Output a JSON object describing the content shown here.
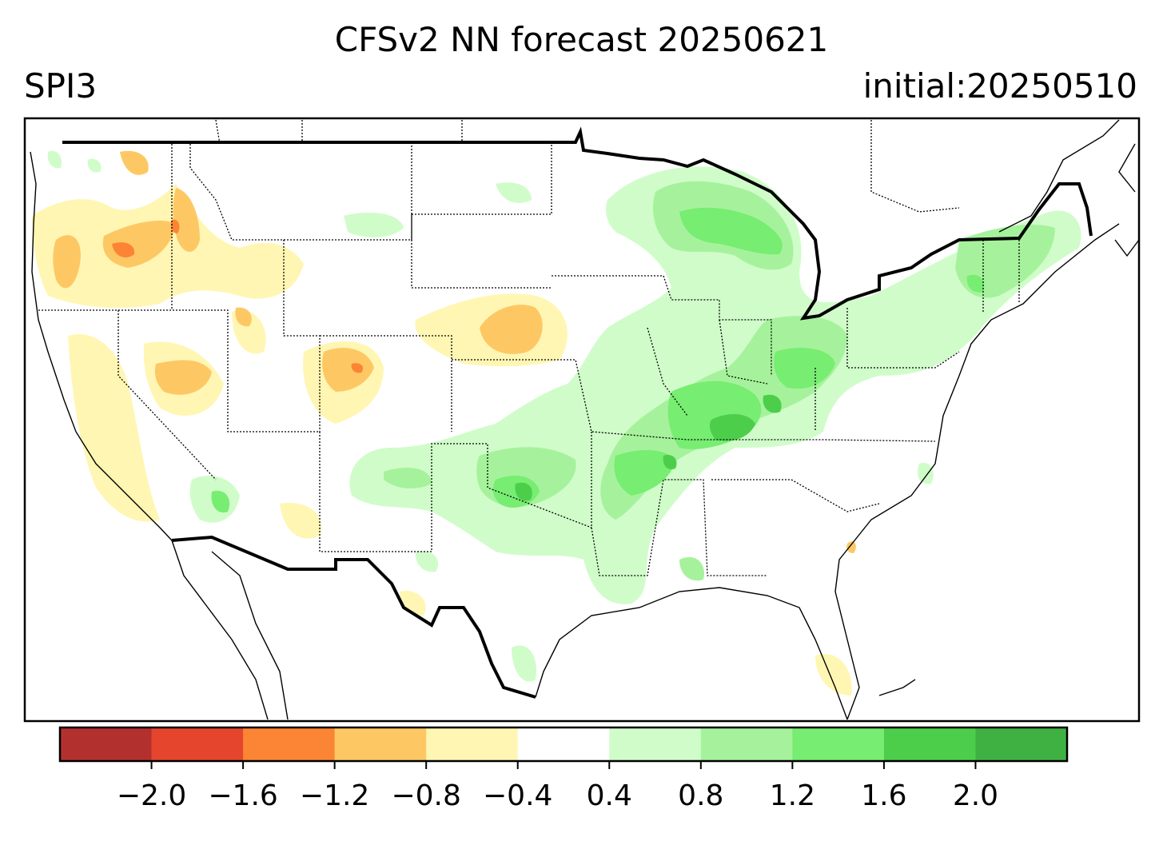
{
  "title": "CFSv2 NN forecast 20250621",
  "left_title": "SPI3",
  "right_title": "initial:20250510",
  "colors": {
    "ocean": "#ffffff",
    "land_neutral": "#ffffff",
    "border": "#000000"
  },
  "colorbar": {
    "colors": [
      "#b2312f",
      "#e6452d",
      "#fb8534",
      "#fdc864",
      "#fff6b4",
      "#ffffff",
      "#d0fcca",
      "#a6f29c",
      "#77ed72",
      "#4cce4b",
      "#3fb143"
    ],
    "tick_labels": [
      "−2.0",
      "−1.6",
      "−1.2",
      "−0.8",
      "−0.4",
      "0.4",
      "0.8",
      "1.2",
      "1.6",
      "2.0"
    ]
  },
  "map": {
    "projection": "Lambert-like CONUS",
    "features": [
      "coastlines",
      "country borders",
      "state borders"
    ],
    "dry_regions": [
      "Pacific Northwest",
      "Oregon",
      "Nevada",
      "Utah",
      "Colorado",
      "Nebraska",
      "California"
    ],
    "wet_regions": [
      "Great Lakes",
      "Ohio Valley",
      "Tennessee",
      "Texas/Oklahoma",
      "Northeast",
      "New England"
    ]
  }
}
